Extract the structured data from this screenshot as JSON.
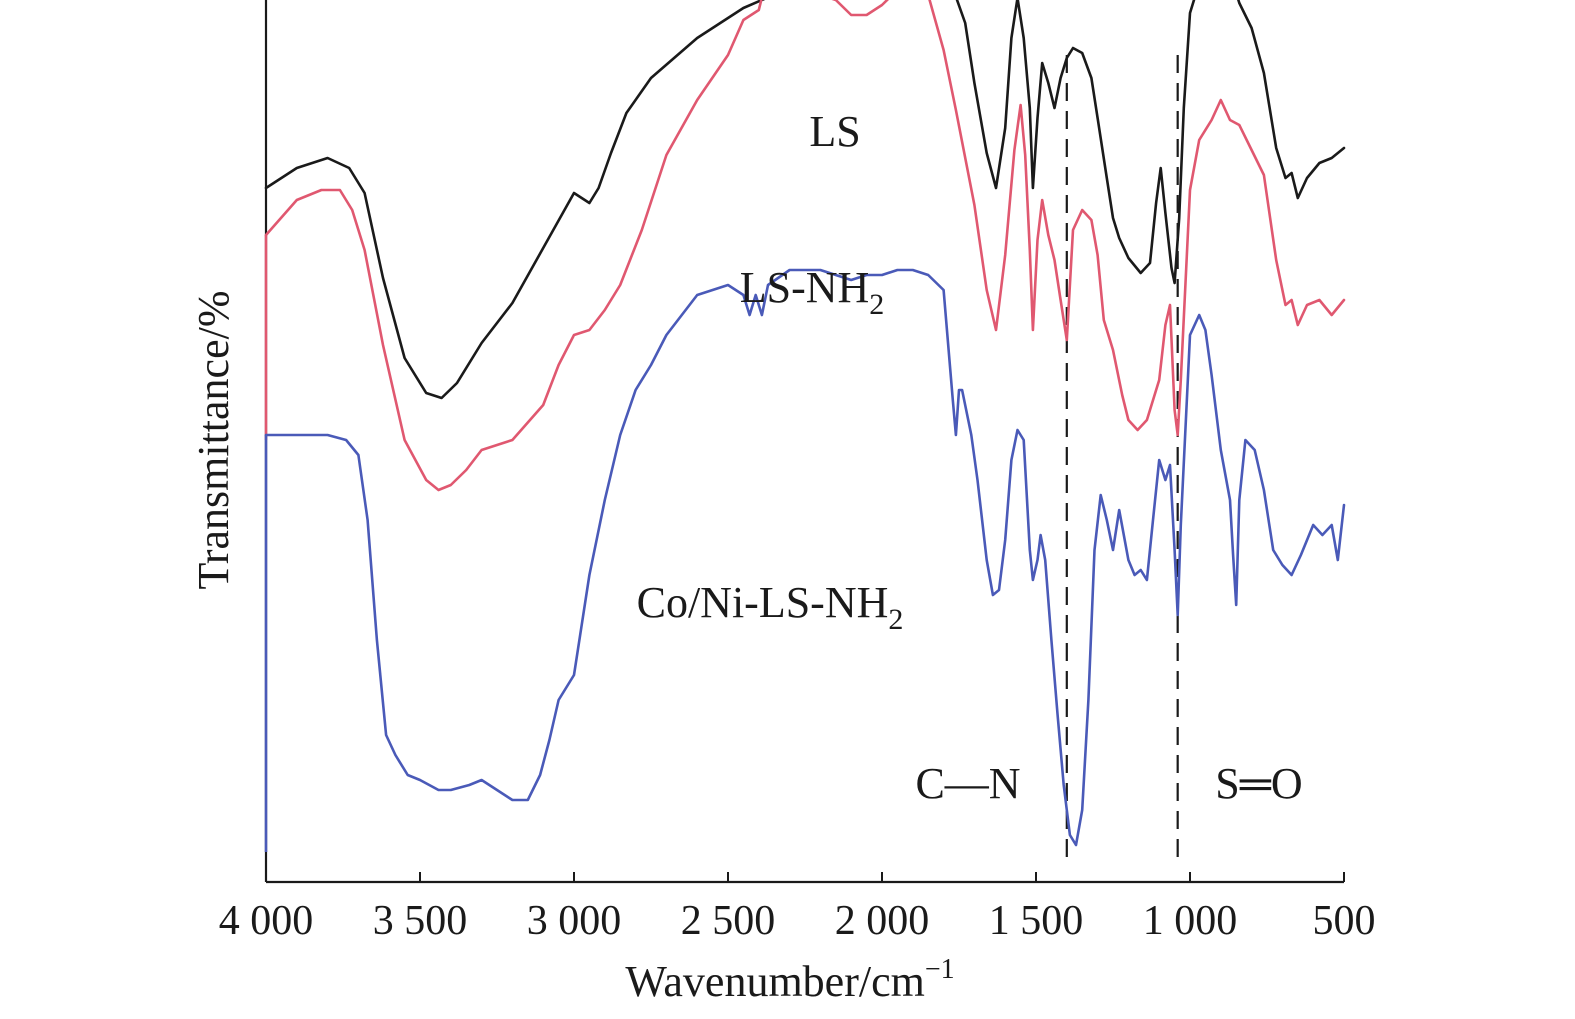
{
  "chart_data": {
    "type": "line",
    "xlabel": "Wavenumber/cm",
    "xlabel_sup": "−1",
    "ylabel": "Transmittance/%",
    "xlim": [
      4000,
      500
    ],
    "x_reversed": true,
    "x_ticks": [
      4000,
      3500,
      3000,
      2500,
      2000,
      1500,
      1000,
      500
    ],
    "x_tick_labels": [
      "4 000",
      "3 500",
      "3 000",
      "2 500",
      "2 000",
      "1 500",
      "1 000",
      "500"
    ],
    "y_ticks_shown": false,
    "grid": false,
    "legend": "none",
    "reference_lines": [
      {
        "x": 1400,
        "label": "C—N"
      },
      {
        "x": 1040,
        "label": "S═O"
      }
    ],
    "series": [
      {
        "name": "LS",
        "label_main": "LS",
        "label_sub": "",
        "color": "#1a1a1a",
        "points": [
          [
            4000,
            8.0
          ],
          [
            3900,
            8.4
          ],
          [
            3800,
            8.6
          ],
          [
            3730,
            8.4
          ],
          [
            3680,
            7.9
          ],
          [
            3620,
            6.2
          ],
          [
            3550,
            4.6
          ],
          [
            3480,
            3.9
          ],
          [
            3430,
            3.8
          ],
          [
            3380,
            4.1
          ],
          [
            3300,
            4.9
          ],
          [
            3200,
            5.7
          ],
          [
            3100,
            6.8
          ],
          [
            3000,
            7.9
          ],
          [
            2950,
            7.7
          ],
          [
            2920,
            8.0
          ],
          [
            2880,
            8.7
          ],
          [
            2830,
            9.5
          ],
          [
            2750,
            10.2
          ],
          [
            2600,
            11.0
          ],
          [
            2450,
            11.6
          ],
          [
            2300,
            12.0
          ],
          [
            2150,
            12.1
          ],
          [
            2050,
            12.2
          ],
          [
            1950,
            12.7
          ],
          [
            1850,
            12.9
          ],
          [
            1800,
            12.5
          ],
          [
            1770,
            12.0
          ],
          [
            1730,
            11.3
          ],
          [
            1700,
            10.1
          ],
          [
            1660,
            8.7
          ],
          [
            1630,
            8.0
          ],
          [
            1600,
            9.2
          ],
          [
            1580,
            11.0
          ],
          [
            1560,
            11.8
          ],
          [
            1540,
            11.0
          ],
          [
            1520,
            9.6
          ],
          [
            1510,
            8.0
          ],
          [
            1495,
            9.4
          ],
          [
            1480,
            10.5
          ],
          [
            1460,
            10.1
          ],
          [
            1440,
            9.6
          ],
          [
            1420,
            10.2
          ],
          [
            1400,
            10.6
          ],
          [
            1380,
            10.8
          ],
          [
            1350,
            10.7
          ],
          [
            1320,
            10.2
          ],
          [
            1300,
            9.4
          ],
          [
            1270,
            8.2
          ],
          [
            1250,
            7.4
          ],
          [
            1230,
            7.0
          ],
          [
            1200,
            6.6
          ],
          [
            1160,
            6.3
          ],
          [
            1130,
            6.5
          ],
          [
            1110,
            7.7
          ],
          [
            1095,
            8.4
          ],
          [
            1080,
            7.5
          ],
          [
            1060,
            6.4
          ],
          [
            1050,
            6.1
          ],
          [
            1035,
            7.4
          ],
          [
            1020,
            9.6
          ],
          [
            1000,
            11.5
          ],
          [
            970,
            12.1
          ],
          [
            930,
            12.5
          ],
          [
            900,
            12.6
          ],
          [
            870,
            12.3
          ],
          [
            840,
            11.7
          ],
          [
            800,
            11.2
          ],
          [
            760,
            10.3
          ],
          [
            720,
            8.8
          ],
          [
            690,
            8.2
          ],
          [
            670,
            8.3
          ],
          [
            650,
            7.8
          ],
          [
            620,
            8.2
          ],
          [
            580,
            8.5
          ],
          [
            540,
            8.6
          ],
          [
            500,
            8.8
          ]
        ]
      },
      {
        "name": "LS-NH2",
        "label_main": "LS-NH",
        "label_sub": "2",
        "color": "#e05870",
        "points": [
          [
            4000,
            8.9
          ],
          [
            3900,
            9.6
          ],
          [
            3820,
            9.8
          ],
          [
            3760,
            9.8
          ],
          [
            3720,
            9.4
          ],
          [
            3680,
            8.6
          ],
          [
            3620,
            6.7
          ],
          [
            3550,
            4.8
          ],
          [
            3480,
            4.0
          ],
          [
            3440,
            3.8
          ],
          [
            3400,
            3.9
          ],
          [
            3350,
            4.2
          ],
          [
            3300,
            4.6
          ],
          [
            3250,
            4.7
          ],
          [
            3200,
            4.8
          ],
          [
            3100,
            5.5
          ],
          [
            3050,
            6.3
          ],
          [
            3000,
            6.9
          ],
          [
            2950,
            7.0
          ],
          [
            2900,
            7.4
          ],
          [
            2850,
            7.9
          ],
          [
            2780,
            9.0
          ],
          [
            2700,
            10.5
          ],
          [
            2600,
            11.6
          ],
          [
            2500,
            12.5
          ],
          [
            2450,
            13.2
          ],
          [
            2400,
            13.4
          ],
          [
            2380,
            13.9
          ],
          [
            2300,
            13.8
          ],
          [
            2200,
            13.7
          ],
          [
            2150,
            13.6
          ],
          [
            2100,
            13.3
          ],
          [
            2050,
            13.3
          ],
          [
            2000,
            13.5
          ],
          [
            1950,
            13.8
          ],
          [
            1900,
            13.9
          ],
          [
            1850,
            13.7
          ],
          [
            1800,
            12.6
          ],
          [
            1760,
            11.4
          ],
          [
            1700,
            9.5
          ],
          [
            1660,
            7.8
          ],
          [
            1630,
            7.0
          ],
          [
            1600,
            8.5
          ],
          [
            1570,
            10.6
          ],
          [
            1550,
            11.5
          ],
          [
            1535,
            10.5
          ],
          [
            1520,
            8.6
          ],
          [
            1510,
            7.0
          ],
          [
            1495,
            8.8
          ],
          [
            1480,
            9.6
          ],
          [
            1460,
            8.9
          ],
          [
            1440,
            8.4
          ],
          [
            1420,
            7.6
          ],
          [
            1400,
            6.8
          ],
          [
            1380,
            9.0
          ],
          [
            1350,
            9.4
          ],
          [
            1320,
            9.2
          ],
          [
            1300,
            8.5
          ],
          [
            1280,
            7.2
          ],
          [
            1250,
            6.6
          ],
          [
            1220,
            5.7
          ],
          [
            1200,
            5.2
          ],
          [
            1170,
            5.0
          ],
          [
            1140,
            5.2
          ],
          [
            1100,
            6.0
          ],
          [
            1080,
            7.1
          ],
          [
            1065,
            7.5
          ],
          [
            1050,
            5.4
          ],
          [
            1040,
            4.9
          ],
          [
            1030,
            6.0
          ],
          [
            1000,
            9.8
          ],
          [
            970,
            10.8
          ],
          [
            930,
            11.2
          ],
          [
            900,
            11.6
          ],
          [
            870,
            11.2
          ],
          [
            840,
            11.1
          ],
          [
            800,
            10.6
          ],
          [
            760,
            10.1
          ],
          [
            720,
            8.4
          ],
          [
            690,
            7.5
          ],
          [
            670,
            7.6
          ],
          [
            650,
            7.1
          ],
          [
            620,
            7.5
          ],
          [
            580,
            7.6
          ],
          [
            540,
            7.3
          ],
          [
            500,
            7.6
          ]
        ]
      },
      {
        "name": "Co/Ni-LS-NH2",
        "label_main": "Co/Ni-LS-NH",
        "label_sub": "2",
        "color": "#4a5ab8",
        "points": [
          [
            4000,
            7.3
          ],
          [
            3900,
            7.3
          ],
          [
            3800,
            7.3
          ],
          [
            3740,
            7.2
          ],
          [
            3700,
            6.9
          ],
          [
            3670,
            5.6
          ],
          [
            3640,
            3.2
          ],
          [
            3610,
            1.3
          ],
          [
            3580,
            0.9
          ],
          [
            3540,
            0.5
          ],
          [
            3500,
            0.4
          ],
          [
            3440,
            0.2
          ],
          [
            3400,
            0.2
          ],
          [
            3340,
            0.3
          ],
          [
            3300,
            0.4
          ],
          [
            3250,
            0.2
          ],
          [
            3200,
            0.0
          ],
          [
            3150,
            0.0
          ],
          [
            3110,
            0.5
          ],
          [
            3080,
            1.2
          ],
          [
            3050,
            2.0
          ],
          [
            3000,
            2.5
          ],
          [
            2950,
            4.5
          ],
          [
            2900,
            6.0
          ],
          [
            2850,
            7.3
          ],
          [
            2800,
            8.2
          ],
          [
            2750,
            8.7
          ],
          [
            2700,
            9.3
          ],
          [
            2650,
            9.7
          ],
          [
            2600,
            10.1
          ],
          [
            2550,
            10.2
          ],
          [
            2500,
            10.3
          ],
          [
            2450,
            10.1
          ],
          [
            2430,
            9.7
          ],
          [
            2410,
            10.1
          ],
          [
            2390,
            9.7
          ],
          [
            2370,
            10.3
          ],
          [
            2300,
            10.6
          ],
          [
            2200,
            10.6
          ],
          [
            2100,
            10.4
          ],
          [
            2050,
            10.5
          ],
          [
            2000,
            10.5
          ],
          [
            1950,
            10.6
          ],
          [
            1900,
            10.6
          ],
          [
            1850,
            10.5
          ],
          [
            1800,
            10.2
          ],
          [
            1770,
            8.0
          ],
          [
            1760,
            7.3
          ],
          [
            1750,
            8.2
          ],
          [
            1740,
            8.2
          ],
          [
            1710,
            7.3
          ],
          [
            1690,
            6.4
          ],
          [
            1660,
            4.8
          ],
          [
            1640,
            4.1
          ],
          [
            1620,
            4.2
          ],
          [
            1600,
            5.2
          ],
          [
            1580,
            6.8
          ],
          [
            1560,
            7.4
          ],
          [
            1540,
            7.2
          ],
          [
            1520,
            5.0
          ],
          [
            1510,
            4.4
          ],
          [
            1495,
            4.8
          ],
          [
            1485,
            5.3
          ],
          [
            1470,
            4.8
          ],
          [
            1450,
            3.2
          ],
          [
            1430,
            1.7
          ],
          [
            1410,
            0.3
          ],
          [
            1390,
            -0.7
          ],
          [
            1370,
            -0.9
          ],
          [
            1350,
            -0.2
          ],
          [
            1330,
            2.0
          ],
          [
            1310,
            5.0
          ],
          [
            1290,
            6.1
          ],
          [
            1270,
            5.6
          ],
          [
            1250,
            5.0
          ],
          [
            1230,
            5.8
          ],
          [
            1200,
            4.8
          ],
          [
            1180,
            4.5
          ],
          [
            1160,
            4.6
          ],
          [
            1140,
            4.4
          ],
          [
            1120,
            5.6
          ],
          [
            1100,
            6.8
          ],
          [
            1080,
            6.4
          ],
          [
            1065,
            6.7
          ],
          [
            1050,
            5.0
          ],
          [
            1040,
            3.7
          ],
          [
            1030,
            5.5
          ],
          [
            1000,
            9.3
          ],
          [
            970,
            9.7
          ],
          [
            950,
            9.4
          ],
          [
            930,
            8.5
          ],
          [
            900,
            7.0
          ],
          [
            870,
            6.0
          ],
          [
            860,
            4.9
          ],
          [
            850,
            3.9
          ],
          [
            840,
            6.0
          ],
          [
            820,
            7.2
          ],
          [
            790,
            7.0
          ],
          [
            760,
            6.2
          ],
          [
            730,
            5.0
          ],
          [
            700,
            4.7
          ],
          [
            670,
            4.5
          ],
          [
            640,
            4.9
          ],
          [
            600,
            5.5
          ],
          [
            570,
            5.3
          ],
          [
            540,
            5.5
          ],
          [
            520,
            4.8
          ],
          [
            500,
            5.9
          ]
        ]
      }
    ]
  }
}
